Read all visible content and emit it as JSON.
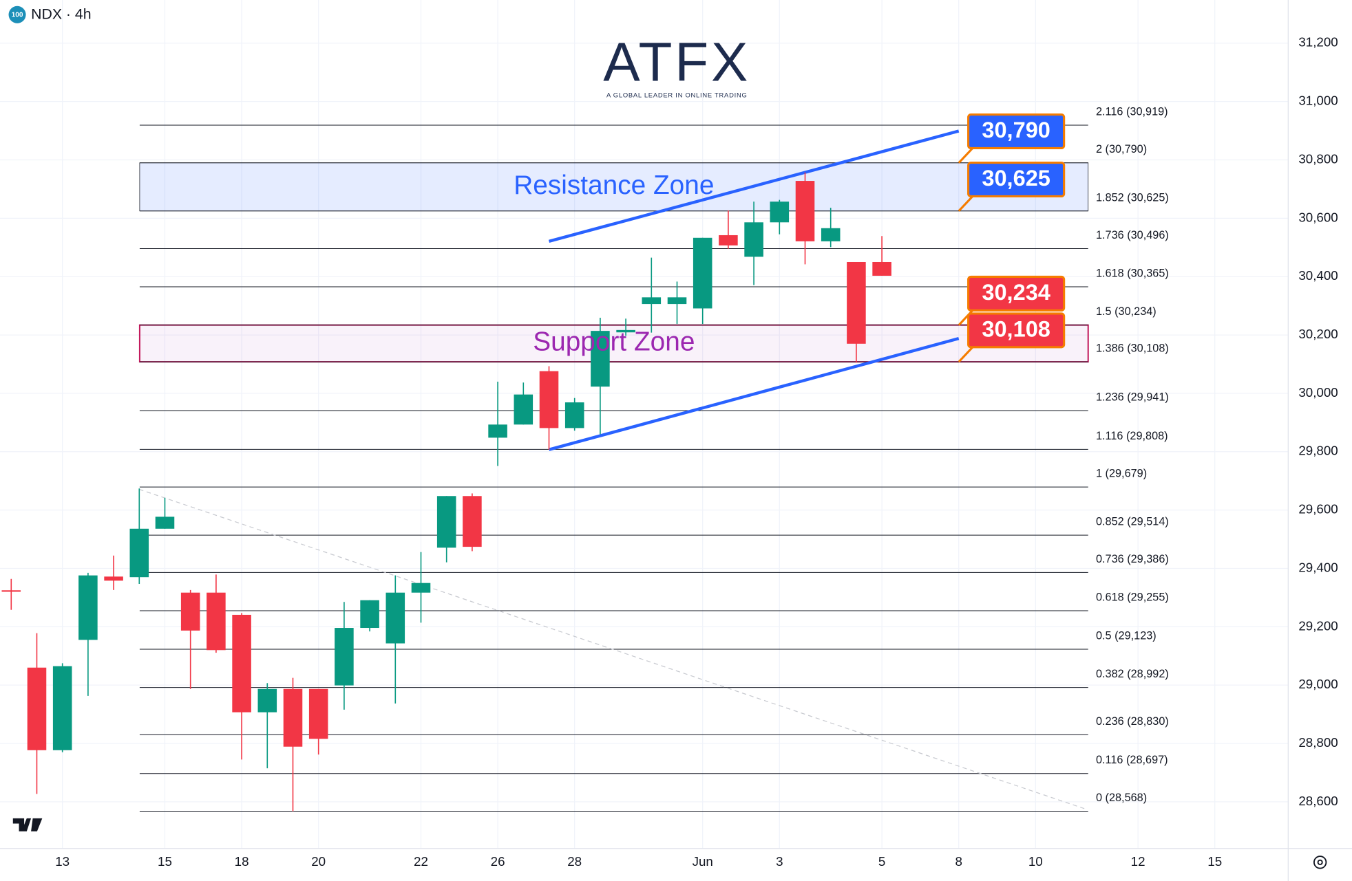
{
  "chart_data": {
    "type": "candlestick",
    "title": "NDX · 4h",
    "symbol_badge": "100",
    "watermark": {
      "brand": "ATFX",
      "tagline": "A GLOBAL LEADER IN ONLINE TRADING"
    },
    "categories": [
      null,
      null,
      "13",
      null,
      null,
      null,
      "15",
      null,
      null,
      "18",
      null,
      null,
      "20",
      null,
      null,
      null,
      "22",
      null,
      null,
      "26",
      null,
      null,
      "28",
      null,
      null,
      null,
      null,
      "Jun",
      null,
      null,
      "3",
      null,
      null,
      null,
      "5",
      null,
      null,
      "8",
      null,
      null,
      "10",
      null,
      null,
      null,
      "12",
      null,
      null,
      "15"
    ],
    "open": [
      29325,
      29060,
      28777,
      29155,
      29372,
      29370,
      29536,
      29317,
      29317,
      29241,
      28907,
      28987,
      28987,
      28999,
      29196,
      29143,
      29317,
      29471,
      29648,
      29848,
      29893,
      30076,
      29881,
      30023,
      30209,
      30306,
      30306,
      30291,
      30542,
      30468,
      30586,
      30728,
      30521,
      30450,
      30450,
      null,
      null,
      null,
      null,
      null,
      null,
      null,
      null,
      null,
      null,
      null,
      null,
      null
    ],
    "high": [
      29364,
      29178,
      29075,
      29385,
      29444,
      29674,
      29642,
      29326,
      29379,
      29247,
      29007,
      29025,
      28987,
      29285,
      29291,
      29376,
      29456,
      29648,
      29657,
      30040,
      30037,
      30093,
      29984,
      30259,
      30256,
      30465,
      30383,
      30533,
      30627,
      30657,
      30663,
      30757,
      30636,
      30450,
      30539,
      null,
      null,
      null,
      null,
      null,
      null,
      null,
      null,
      null,
      null,
      null,
      null,
      null
    ],
    "low": [
      29258,
      28627,
      28770,
      28963,
      29326,
      29347,
      29536,
      28987,
      29111,
      28745,
      28715,
      28568,
      28762,
      28916,
      29184,
      28937,
      29214,
      29421,
      29459,
      29751,
      29893,
      29807,
      29872,
      29860,
      30197,
      30208,
      30238,
      30238,
      30495,
      30371,
      30545,
      30442,
      30501,
      30105,
      30403,
      null,
      null,
      null,
      null,
      null,
      null,
      null,
      null,
      null,
      null,
      null,
      null,
      null
    ],
    "close": [
      29320,
      28777,
      29065,
      29376,
      29358,
      29536,
      29577,
      29187,
      29120,
      28907,
      28987,
      28789,
      28816,
      29196,
      29291,
      29317,
      29350,
      29648,
      29474,
      29893,
      29996,
      29881,
      29969,
      30214,
      30217,
      30329,
      30329,
      30533,
      30507,
      30586,
      30657,
      30521,
      30566,
      30170,
      30403,
      null,
      null,
      null,
      null,
      null,
      null,
      null,
      null,
      null,
      null,
      null,
      null,
      null
    ],
    "up_color": "#089981",
    "down_color": "#f23645",
    "ylim": [
      28440,
      31348
    ],
    "yticks": [
      {
        "value": 28600,
        "label": "28,600"
      },
      {
        "value": 28800,
        "label": "28,800"
      },
      {
        "value": 29000,
        "label": "29,000"
      },
      {
        "value": 29200,
        "label": "29,200"
      },
      {
        "value": 29400,
        "label": "29,400"
      },
      {
        "value": 29600,
        "label": "29,600"
      },
      {
        "value": 29800,
        "label": "29,800"
      },
      {
        "value": 30000,
        "label": "30,000"
      },
      {
        "value": 30200,
        "label": "30,200"
      },
      {
        "value": 30400,
        "label": "30,400"
      },
      {
        "value": 30600,
        "label": "30,600"
      },
      {
        "value": 30800,
        "label": "30,800"
      },
      {
        "value": 31000,
        "label": "31,000"
      },
      {
        "value": 31200,
        "label": "31,200"
      }
    ],
    "grid": true,
    "fib_levels": [
      {
        "value": 30919,
        "label": "2.116 (30,919)"
      },
      {
        "value": 30790,
        "label": "2 (30,790)"
      },
      {
        "value": 30625,
        "label": "1.852 (30,625)"
      },
      {
        "value": 30496,
        "label": "1.736 (30,496)"
      },
      {
        "value": 30365,
        "label": "1.618 (30,365)"
      },
      {
        "value": 30234,
        "label": "1.5 (30,234)"
      },
      {
        "value": 30108,
        "label": "1.386 (30,108)"
      },
      {
        "value": 29941,
        "label": "1.236 (29,941)"
      },
      {
        "value": 29808,
        "label": "1.116 (29,808)"
      },
      {
        "value": 29679,
        "label": "1 (29,679)"
      },
      {
        "value": 29514,
        "label": "0.852 (29,514)"
      },
      {
        "value": 29386,
        "label": "0.736 (29,386)"
      },
      {
        "value": 29255,
        "label": "0.618 (29,255)"
      },
      {
        "value": 29123,
        "label": "0.5 (29,123)"
      },
      {
        "value": 28992,
        "label": "0.382 (28,992)"
      },
      {
        "value": 28830,
        "label": "0.236 (28,830)"
      },
      {
        "value": 28697,
        "label": "0.116 (28,697)"
      },
      {
        "value": 28568,
        "label": "0 (28,568)"
      }
    ],
    "zones": [
      {
        "label": "Resistance Zone",
        "range": [
          30625,
          30790
        ],
        "color": "#2962ff"
      },
      {
        "label": "Support Zone",
        "range": [
          30108,
          30234
        ],
        "color": "#9c27b0"
      }
    ],
    "price_labels": [
      {
        "value": 30790,
        "label": "30,790",
        "color": "#2962ff"
      },
      {
        "value": 30625,
        "label": "30,625",
        "color": "#2962ff"
      },
      {
        "value": 30234,
        "label": "30,234",
        "color": "#f23645"
      },
      {
        "value": 30108,
        "label": "30,108",
        "color": "#f23645"
      }
    ],
    "trendlines": [
      {
        "x": [
          21,
          37
        ],
        "values": [
          30521,
          30899
        ],
        "color": "#2962ff",
        "style": "solid"
      },
      {
        "x": [
          21,
          37
        ],
        "values": [
          29807,
          30188
        ],
        "color": "#2962ff",
        "style": "solid"
      },
      {
        "x": [
          5,
          42
        ],
        "values": [
          29671,
          28574
        ],
        "color": "#c8cad0",
        "style": "dashed"
      }
    ]
  }
}
